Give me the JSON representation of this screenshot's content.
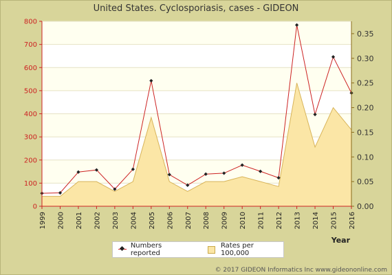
{
  "title": "United States. Cyclosporiasis, cases - GIDEON",
  "copyright": "© 2017 GIDEON Informatics Inc www.gideononline.com",
  "colors": {
    "line": "#cc2222",
    "marker": "#222222",
    "area_fill": "#fbe6a6",
    "area_stroke": "#d8b45a",
    "left_axis": "#cc2222",
    "right_axis": "#8a6a1a",
    "band_light": "#fffff0",
    "band_white": "#ffffff",
    "background": "#d8d59a"
  },
  "chart_data": {
    "type": "line",
    "title": "United States. Cyclosporiasis, cases - GIDEON",
    "xlabel": "Year",
    "ylabel": "",
    "categories": [
      "1999",
      "2000",
      "2001",
      "2002",
      "2003",
      "2004",
      "2005",
      "2006",
      "2007",
      "2008",
      "2009",
      "2010",
      "2011",
      "2012",
      "2013",
      "2014",
      "2015",
      "2016"
    ],
    "series": [
      {
        "name": "Numbers reported",
        "axis": "left",
        "type": "line",
        "values": [
          56,
          58,
          148,
          157,
          74,
          160,
          543,
          137,
          91,
          139,
          143,
          178,
          151,
          123,
          784,
          397,
          646,
          490
        ]
      },
      {
        "name": "Rates per 100,000",
        "axis": "right",
        "type": "area",
        "values": [
          0.02,
          0.02,
          0.05,
          0.05,
          0.03,
          0.05,
          0.18,
          0.05,
          0.03,
          0.05,
          0.05,
          0.06,
          0.05,
          0.04,
          0.25,
          0.12,
          0.2,
          0.155
        ]
      }
    ],
    "y_left": {
      "ylim": [
        0,
        800
      ],
      "ticks": [
        "0",
        "100",
        "200",
        "300",
        "400",
        "500",
        "600",
        "700",
        "800"
      ]
    },
    "y_right": {
      "ylim": [
        0,
        0.375
      ],
      "ticks": [
        "0.00",
        "0.05",
        "0.10",
        "0.15",
        "0.20",
        "0.25",
        "0.30",
        "0.35"
      ]
    },
    "grid": "horizontal bands",
    "legend_position": "bottom-center"
  }
}
